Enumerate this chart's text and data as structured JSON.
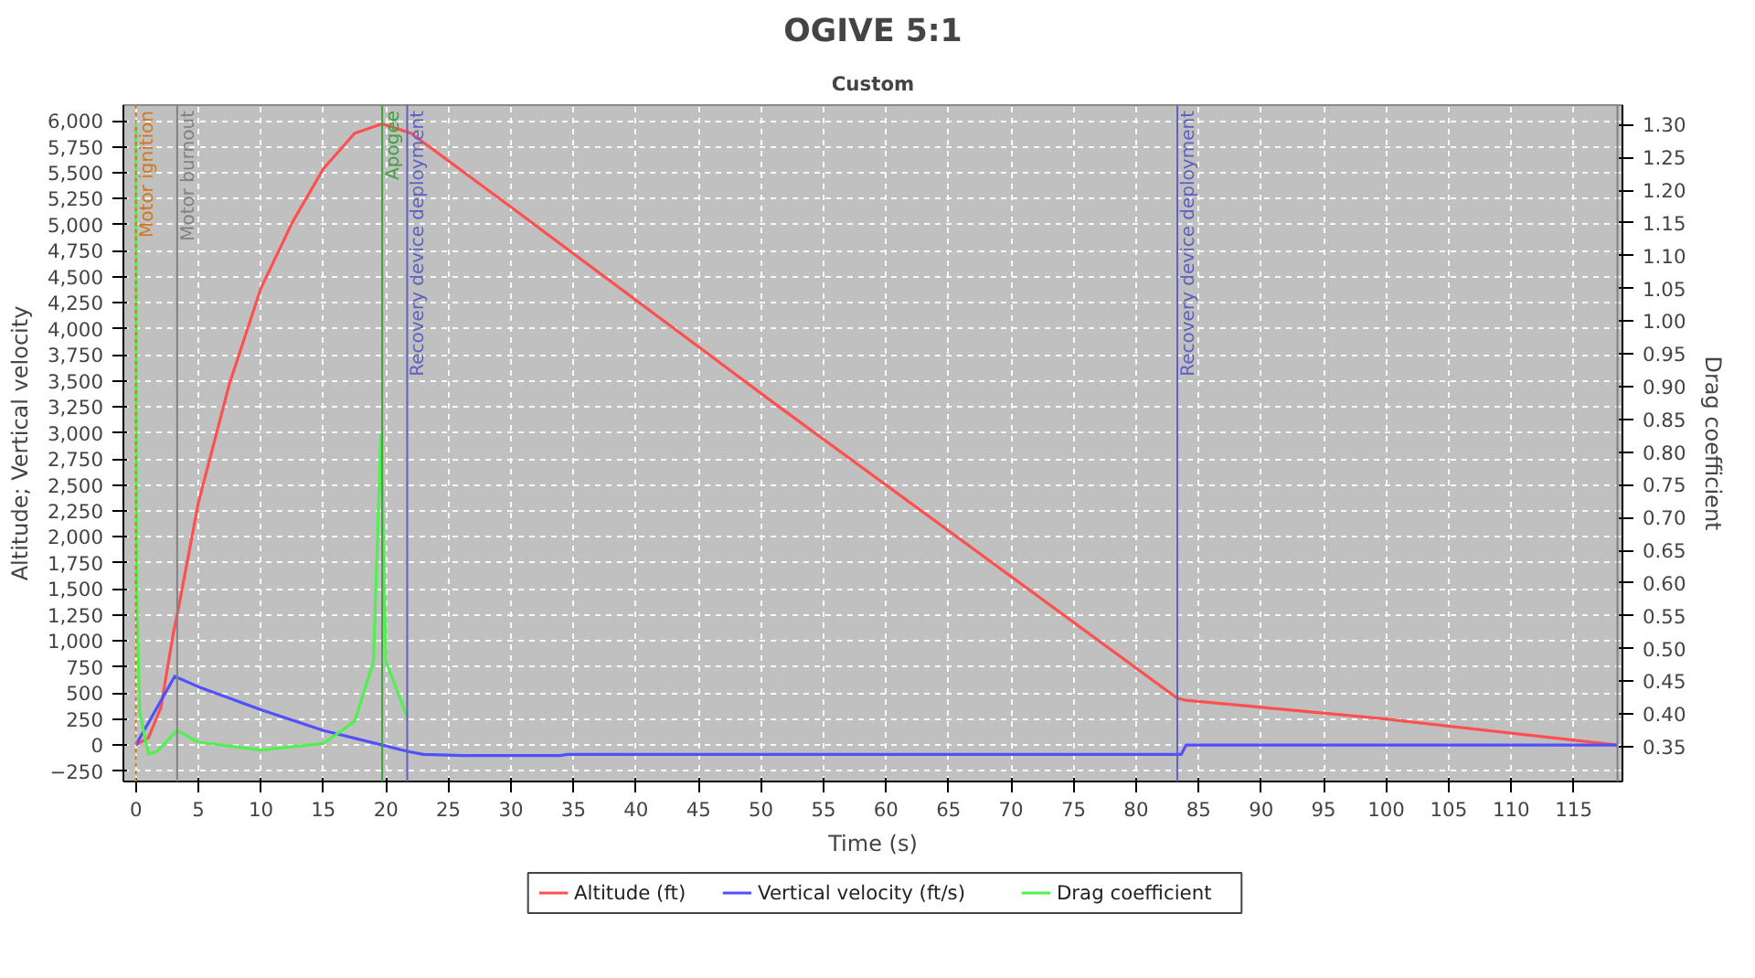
{
  "chart_data": {
    "type": "line",
    "title": "OGIVE 5:1",
    "subtitle": "Custom",
    "xlabel": "Time (s)",
    "ylabel": "Altitude; Vertical velocity",
    "y2label": "Drag coefficient",
    "series": [
      {
        "name": "Altitude (ft)",
        "color": "#ff5050",
        "x": [
          0,
          1,
          2,
          3,
          3.3,
          5,
          7.5,
          10,
          12.5,
          15,
          17.5,
          19.7,
          22,
          30,
          51,
          83.3,
          84,
          100,
          118.5
        ],
        "values": [
          0,
          70,
          360,
          1080,
          1250,
          2330,
          3480,
          4390,
          5020,
          5540,
          5880,
          5970,
          5880,
          5170,
          3290,
          450,
          430,
          250,
          0
        ]
      },
      {
        "name": "Vertical velocity (ft/s)",
        "color": "#5050ff",
        "x": [
          0,
          3.1,
          5,
          10,
          15,
          19.7,
          21.7,
          23,
          26.2,
          34,
          34.5,
          83.3,
          83.6,
          84,
          118.5
        ],
        "values": [
          0,
          660,
          560,
          340,
          140,
          0,
          -60,
          -90,
          -100,
          -100,
          -90,
          -90,
          -90,
          0,
          0
        ]
      },
      {
        "name": "Drag coefficient",
        "color": "#50f050",
        "axis": "y2",
        "x": [
          0,
          0.05,
          0.3,
          1,
          1.7,
          3.3,
          5,
          10,
          15,
          17.5,
          19,
          19.6,
          20,
          21.7
        ],
        "values": [
          1.3,
          0.6,
          0.403,
          0.339,
          0.343,
          0.375,
          0.357,
          0.345,
          0.355,
          0.389,
          0.48,
          0.827,
          0.48,
          0.396
        ]
      }
    ],
    "xlim": [
      -1,
      118.9
    ],
    "ylim": [
      -350,
      6150
    ],
    "y2lim": [
      0.297,
      1.33
    ],
    "xticks": [
      0,
      5,
      10,
      15,
      20,
      25,
      30,
      35,
      40,
      45,
      50,
      55,
      60,
      65,
      70,
      75,
      80,
      85,
      90,
      95,
      100,
      105,
      110,
      115
    ],
    "yticks": [
      -250,
      0,
      250,
      500,
      750,
      {
        "value": 1000,
        "label": "1,000"
      },
      {
        "value": 1250,
        "label": "1,250"
      },
      {
        "value": 1500,
        "label": "1,500"
      },
      {
        "value": 1750,
        "label": "1,750"
      },
      {
        "value": 2000,
        "label": "2,000"
      },
      {
        "value": 2250,
        "label": "2,250"
      },
      {
        "value": 2500,
        "label": "2,500"
      },
      {
        "value": 2750,
        "label": "2,750"
      },
      {
        "value": 3000,
        "label": "3,000"
      },
      {
        "value": 3250,
        "label": "3,250"
      },
      {
        "value": 3500,
        "label": "3,500"
      },
      {
        "value": 3750,
        "label": "3,750"
      },
      {
        "value": 4000,
        "label": "4,000"
      },
      {
        "value": 4250,
        "label": "4,250"
      },
      {
        "value": 4500,
        "label": "4,500"
      },
      {
        "value": 4750,
        "label": "4,750"
      },
      {
        "value": 5000,
        "label": "5,000"
      },
      {
        "value": 5250,
        "label": "5,250"
      },
      {
        "value": 5500,
        "label": "5,500"
      },
      {
        "value": 5750,
        "label": "5,750"
      },
      {
        "value": 6000,
        "label": "6,000"
      }
    ],
    "y2ticks": [
      0.35,
      {
        "value": 0.4,
        "label": "0.40"
      },
      0.45,
      {
        "value": 0.5,
        "label": "0.50"
      },
      0.55,
      {
        "value": 0.6,
        "label": "0.60"
      },
      0.65,
      {
        "value": 0.7,
        "label": "0.70"
      },
      0.75,
      {
        "value": 0.8,
        "label": "0.80"
      },
      0.85,
      {
        "value": 0.9,
        "label": "0.90"
      },
      0.95,
      {
        "value": 1.0,
        "label": "1.00"
      },
      1.05,
      {
        "value": 1.1,
        "label": "1.10"
      },
      1.15,
      {
        "value": 1.2,
        "label": "1.20"
      },
      1.25,
      {
        "value": 1.3,
        "label": "1.30"
      }
    ],
    "ref_lines": [
      {
        "axis": "x",
        "value": 0,
        "label": "Motor ignition",
        "color": "#d07820",
        "line_style": "dotted"
      },
      {
        "axis": "x",
        "value": 3.3,
        "label": "Motor burnout",
        "color": "#808080"
      },
      {
        "axis": "x",
        "value": 19.7,
        "label": "Apogee",
        "color": "#40a040"
      },
      {
        "axis": "x",
        "value": 21.7,
        "label": "Recovery device deployment",
        "color": "#6060c0"
      },
      {
        "axis": "x",
        "value": 83.3,
        "label": "Recovery device deployment",
        "color": "#6060c0"
      },
      {
        "axis": "x",
        "value": 118.5,
        "label": null,
        "color": "#808080"
      }
    ],
    "grid": true,
    "legend": "bottom",
    "marker": "none",
    "line_style": "solid"
  }
}
